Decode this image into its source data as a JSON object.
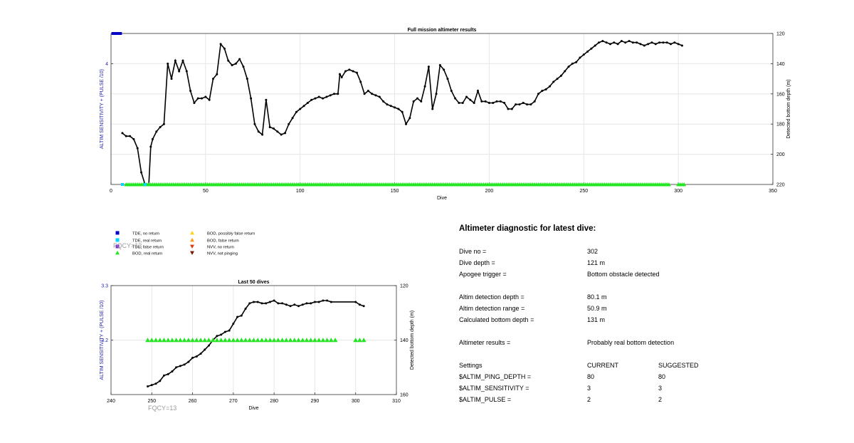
{
  "colors": {
    "tde_no_return": "#0000c8",
    "tde_real_return": "#00d8ff",
    "tde_false_return": "#7a2bd6",
    "bod_real_return": "#22e622",
    "bod_possibly_false": "#ffd21a",
    "bod_false_return": "#ff9a1a",
    "nvv_no_return": "#e03a10",
    "nvv_not_pinging": "#7a1a00",
    "left_axis": "#2222aa",
    "line": "#000000",
    "grid": "#e6e6e6"
  },
  "legend": [
    {
      "label": "TDE, no return",
      "marker": "square",
      "color_key": "tde_no_return"
    },
    {
      "label": "TDE, real return",
      "marker": "square",
      "color_key": "tde_real_return"
    },
    {
      "label": "TDE, false return",
      "marker": "square",
      "color_key": "tde_false_return"
    },
    {
      "label": "BOD, real return",
      "marker": "triangle-up",
      "color_key": "bod_real_return"
    },
    {
      "label": "BOD, possibly false return",
      "marker": "triangle-up",
      "color_key": "bod_possibly_false"
    },
    {
      "label": "BOD, false return",
      "marker": "triangle-up",
      "color_key": "bod_false_return"
    },
    {
      "label": "NVV, no return",
      "marker": "triangle-down",
      "color_key": "nvv_no_return"
    },
    {
      "label": "NVV, not pinging",
      "marker": "triangle-down",
      "color_key": "nvv_not_pinging"
    }
  ],
  "fqcy_label": "FQCY=13",
  "chart_data": [
    {
      "type": "line",
      "title": "Full mission altimeter results",
      "xlabel": "Dive",
      "ylabel_left": "ALTIM SENSITIVITY + (PULSE /10)",
      "ylabel_right": "Detected bottom depth (m)",
      "xlim": [
        0,
        350
      ],
      "xticks": [
        0,
        50,
        100,
        150,
        200,
        250,
        300,
        350
      ],
      "ylim_left": [
        0,
        5
      ],
      "yticks_left": [
        4
      ],
      "ylim_right": [
        120,
        220
      ],
      "yticks_right": [
        120,
        140,
        160,
        180,
        200,
        220
      ],
      "right_axis_reversed": true,
      "grid": true,
      "series": [
        {
          "name": "Detected bottom depth",
          "axis": "right",
          "x": [
            6,
            8,
            10,
            12,
            14,
            16,
            18,
            20,
            21,
            22,
            24,
            26,
            28,
            30,
            32,
            34,
            36,
            38,
            40,
            42,
            44,
            46,
            48,
            50,
            52,
            54,
            56,
            58,
            60,
            62,
            64,
            66,
            68,
            70,
            72,
            74,
            76,
            78,
            80,
            82,
            84,
            86,
            88,
            90,
            92,
            94,
            96,
            98,
            100,
            102,
            104,
            106,
            108,
            110,
            112,
            114,
            116,
            118,
            120,
            121,
            122,
            124,
            126,
            128,
            130,
            132,
            134,
            136,
            138,
            140,
            142,
            144,
            146,
            148,
            150,
            152,
            154,
            156,
            158,
            160,
            162,
            164,
            166,
            168,
            170,
            172,
            174,
            176,
            178,
            180,
            182,
            184,
            186,
            188,
            190,
            192,
            194,
            196,
            198,
            200,
            202,
            204,
            206,
            208,
            210,
            212,
            214,
            216,
            218,
            220,
            222,
            224,
            226,
            228,
            230,
            232,
            234,
            236,
            238,
            240,
            242,
            244,
            246,
            248,
            250,
            252,
            254,
            256,
            258,
            260,
            262,
            264,
            266,
            268,
            270,
            272,
            274,
            276,
            278,
            280,
            282,
            284,
            286,
            288,
            290,
            292,
            294,
            296,
            298,
            300,
            302
          ],
          "y": [
            186,
            188,
            188,
            190,
            196,
            212,
            220,
            220,
            195,
            190,
            185,
            182,
            180,
            140,
            150,
            138,
            145,
            138,
            145,
            158,
            166,
            163,
            163,
            162,
            164,
            150,
            147,
            127,
            130,
            138,
            141,
            140,
            137,
            142,
            150,
            163,
            180,
            185,
            187,
            164,
            182,
            183,
            185,
            187,
            186,
            180,
            176,
            172,
            170,
            168,
            166,
            164,
            163,
            162,
            163,
            162,
            161,
            160,
            160,
            147,
            149,
            145,
            144,
            145,
            146,
            152,
            160,
            158,
            160,
            161,
            162,
            165,
            167,
            168,
            169,
            170,
            172,
            180,
            176,
            165,
            163,
            165,
            155,
            142,
            170,
            160,
            141,
            144,
            150,
            158,
            163,
            166,
            166,
            162,
            164,
            166,
            158,
            165,
            165,
            166,
            166,
            165,
            165,
            166,
            170,
            170,
            167,
            167,
            166,
            167,
            167,
            165,
            160,
            158,
            157,
            155,
            152,
            150,
            148,
            145,
            142,
            140,
            139,
            136,
            134,
            132,
            130,
            128,
            126,
            125,
            126,
            127,
            126,
            127,
            125,
            126,
            125,
            126,
            126,
            127,
            128,
            127,
            126,
            127,
            126,
            126,
            126,
            127,
            126,
            127,
            128
          ]
        },
        {
          "name": "BOD, real return",
          "axis": "left",
          "x_range": [
            8,
            295
          ],
          "x_extra": [
            300,
            301,
            302,
            303
          ],
          "y": 0
        },
        {
          "name": "TDE, real return",
          "axis": "left",
          "x": [
            6,
            18
          ],
          "y": 0
        },
        {
          "name": "TDE, no return",
          "axis": "left",
          "x_range": [
            1,
            5
          ],
          "y": 5
        }
      ]
    },
    {
      "type": "line",
      "title": "Last 50 dives",
      "xlabel": "Dive",
      "ylabel_left": "ALTIM SENSITIVITY + (PULSE /10)",
      "ylabel_right": "Detected bottom depth (m)",
      "xlim": [
        240,
        310
      ],
      "xticks": [
        240,
        250,
        260,
        270,
        280,
        290,
        300,
        310
      ],
      "ylim_left": [
        3.1,
        3.3
      ],
      "yticks_left": [
        3.2,
        3.3
      ],
      "ylim_right": [
        120,
        160
      ],
      "yticks_right": [
        120,
        140,
        160
      ],
      "right_axis_reversed": true,
      "grid": true,
      "series": [
        {
          "name": "Detected bottom depth",
          "axis": "right",
          "x": [
            249,
            250,
            251,
            252,
            253,
            254,
            255,
            256,
            257,
            258,
            259,
            260,
            261,
            262,
            263,
            264,
            265,
            266,
            267,
            268,
            269,
            270,
            271,
            272,
            273,
            274,
            275,
            276,
            277,
            278,
            279,
            280,
            281,
            282,
            283,
            284,
            285,
            286,
            287,
            288,
            289,
            290,
            291,
            292,
            293,
            294,
            300,
            301,
            302
          ],
          "y": [
            157,
            156.5,
            156,
            155,
            153,
            152.5,
            151.5,
            150,
            149.5,
            149,
            148,
            146.5,
            146,
            145,
            143.5,
            142,
            140,
            138.5,
            138,
            137,
            136.5,
            134,
            131.5,
            131,
            128.5,
            126.5,
            126,
            126,
            126.5,
            126.5,
            126,
            125.5,
            126.5,
            126.5,
            127,
            127.5,
            127,
            127.5,
            127,
            126.5,
            126.5,
            126,
            126,
            125.5,
            125.5,
            126,
            126,
            127,
            127.5
          ]
        },
        {
          "name": "BOD, real return",
          "axis": "left",
          "x_range": [
            249,
            295
          ],
          "x_extra": [
            300,
            301,
            302
          ],
          "y": 3.2
        }
      ]
    }
  ],
  "diagnostic": {
    "title": "Altimeter diagnostic for latest dive:",
    "dive_no_label": "Dive no =",
    "dive_no_value": "302",
    "dive_depth_label": "Dive depth =",
    "dive_depth_value": "121 m",
    "apogee_label": "Apogee trigger =",
    "apogee_value": "Bottom obstacle detected",
    "det_depth_label": "Altim detection depth =",
    "det_depth_value": "80.1 m",
    "det_range_label": "Altim detection range =",
    "det_range_value": "50.9 m",
    "calc_depth_label": "Calculated bottom depth =",
    "calc_depth_value": "131 m",
    "results_label": "Altimeter results =",
    "results_value": "Probably real bottom detection",
    "settings_label": "Settings",
    "current_label": "CURRENT",
    "suggested_label": "SUGGESTED",
    "settings": [
      {
        "name": "$ALTIM_PING_DEPTH =",
        "current": "80",
        "suggested": "80"
      },
      {
        "name": "$ALTIM_SENSITIVITY =",
        "current": "3",
        "suggested": "3"
      },
      {
        "name": "$ALTIM_PULSE =",
        "current": "2",
        "suggested": "2"
      }
    ]
  }
}
